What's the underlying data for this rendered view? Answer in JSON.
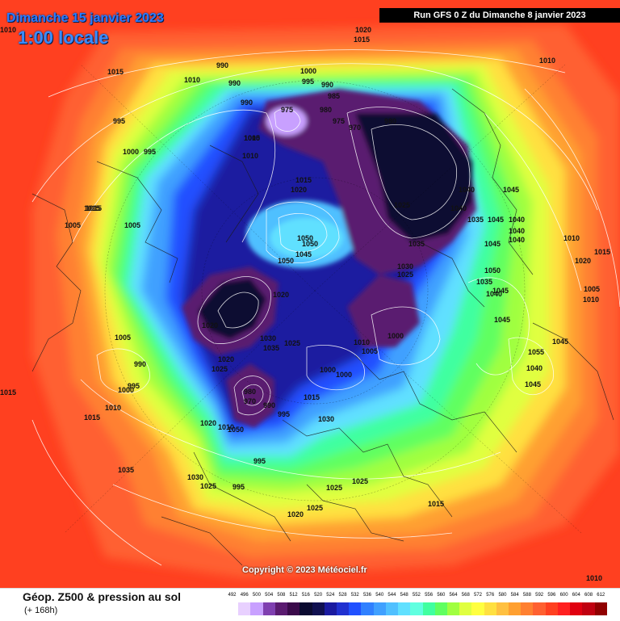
{
  "header": {
    "date": "Dimanche 15 janvier 2023",
    "time": "1:00 locale",
    "run": "Run GFS 0 Z du Dimanche 8 janvier 2023"
  },
  "copyright": "Copyright © 2023 Météociel.fr",
  "footer": {
    "title": "Géop. Z500 & pression au sol",
    "subtitle": "(+ 168h)"
  },
  "scale": {
    "labels": [
      "492",
      "496",
      "500",
      "504",
      "508",
      "512",
      "516",
      "520",
      "524",
      "528",
      "532",
      "536",
      "540",
      "544",
      "548",
      "552",
      "556",
      "560",
      "564",
      "568",
      "572",
      "576",
      "580",
      "584",
      "588",
      "592",
      "596",
      "600",
      "604",
      "608",
      "612"
    ],
    "colors": [
      "#ffffff",
      "#e8d0ff",
      "#c8a0ff",
      "#7f3fb0",
      "#5a1a70",
      "#3a0a4a",
      "#0a0a30",
      "#101050",
      "#1a1aa0",
      "#2030d0",
      "#2050ff",
      "#3080ff",
      "#40a0ff",
      "#50c0ff",
      "#60e0ff",
      "#60ffe0",
      "#40ffa0",
      "#60ff60",
      "#a0ff40",
      "#e0ff40",
      "#ffff40",
      "#ffe040",
      "#ffc040",
      "#ffa030",
      "#ff8030",
      "#ff6030",
      "#ff4020",
      "#ff2020",
      "#e00010",
      "#c00010",
      "#900000"
    ]
  },
  "isobar_labels": [
    {
      "text": "1010"
    },
    {
      "text": "1020"
    },
    {
      "text": "1015"
    },
    {
      "text": "1010"
    },
    {
      "text": "1015"
    },
    {
      "text": "1010"
    },
    {
      "text": "990"
    },
    {
      "text": "990"
    },
    {
      "text": "1000"
    },
    {
      "text": "995"
    },
    {
      "text": "990"
    },
    {
      "text": "985"
    },
    {
      "text": "975"
    },
    {
      "text": "980"
    },
    {
      "text": "975"
    },
    {
      "text": "970"
    },
    {
      "text": "980"
    },
    {
      "text": "1010"
    },
    {
      "text": "990"
    },
    {
      "text": "995"
    },
    {
      "text": "1005"
    },
    {
      "text": "1010"
    },
    {
      "text": "1000"
    },
    {
      "text": "995"
    },
    {
      "text": "1015"
    },
    {
      "text": "1020"
    },
    {
      "text": "1040"
    },
    {
      "text": "1045"
    },
    {
      "text": "1015"
    },
    {
      "text": "1025"
    },
    {
      "text": "1040"
    },
    {
      "text": "1035"
    },
    {
      "text": "1045"
    },
    {
      "text": "1040"
    },
    {
      "text": "1040"
    },
    {
      "text": "1040"
    },
    {
      "text": "1015"
    },
    {
      "text": "1005"
    },
    {
      "text": "1005"
    },
    {
      "text": "1050"
    },
    {
      "text": "1050"
    },
    {
      "text": "1045"
    },
    {
      "text": "1035"
    },
    {
      "text": "1045"
    },
    {
      "text": "1010"
    },
    {
      "text": "1020"
    },
    {
      "text": "1015"
    },
    {
      "text": "1030"
    },
    {
      "text": "1025"
    },
    {
      "text": "1050"
    },
    {
      "text": "1035"
    },
    {
      "text": "1040"
    },
    {
      "text": "1050"
    },
    {
      "text": "1005"
    },
    {
      "text": "1010"
    },
    {
      "text": "1020"
    },
    {
      "text": "1020"
    },
    {
      "text": "1045"
    },
    {
      "text": "1045"
    },
    {
      "text": "1005"
    },
    {
      "text": "1030"
    },
    {
      "text": "1035"
    },
    {
      "text": "1025"
    },
    {
      "text": "1010"
    },
    {
      "text": "1005"
    },
    {
      "text": "1000"
    },
    {
      "text": "1055"
    },
    {
      "text": "1045"
    },
    {
      "text": "990"
    },
    {
      "text": "1020"
    },
    {
      "text": "1025"
    },
    {
      "text": "1000"
    },
    {
      "text": "1000"
    },
    {
      "text": "995"
    },
    {
      "text": "1000"
    },
    {
      "text": "1040"
    },
    {
      "text": "1045"
    },
    {
      "text": "980"
    },
    {
      "text": "970"
    },
    {
      "text": "990"
    },
    {
      "text": "1015"
    },
    {
      "text": "1015"
    },
    {
      "text": "1015"
    },
    {
      "text": "1010"
    },
    {
      "text": "995"
    },
    {
      "text": "1020"
    },
    {
      "text": "1010"
    },
    {
      "text": "1050"
    },
    {
      "text": "1030"
    },
    {
      "text": "995"
    },
    {
      "text": "1035"
    },
    {
      "text": "1030"
    },
    {
      "text": "1025"
    },
    {
      "text": "995"
    },
    {
      "text": "1025"
    },
    {
      "text": "1025"
    },
    {
      "text": "1015"
    },
    {
      "text": "1025"
    },
    {
      "text": "1020"
    },
    {
      "text": "1010"
    }
  ]
}
